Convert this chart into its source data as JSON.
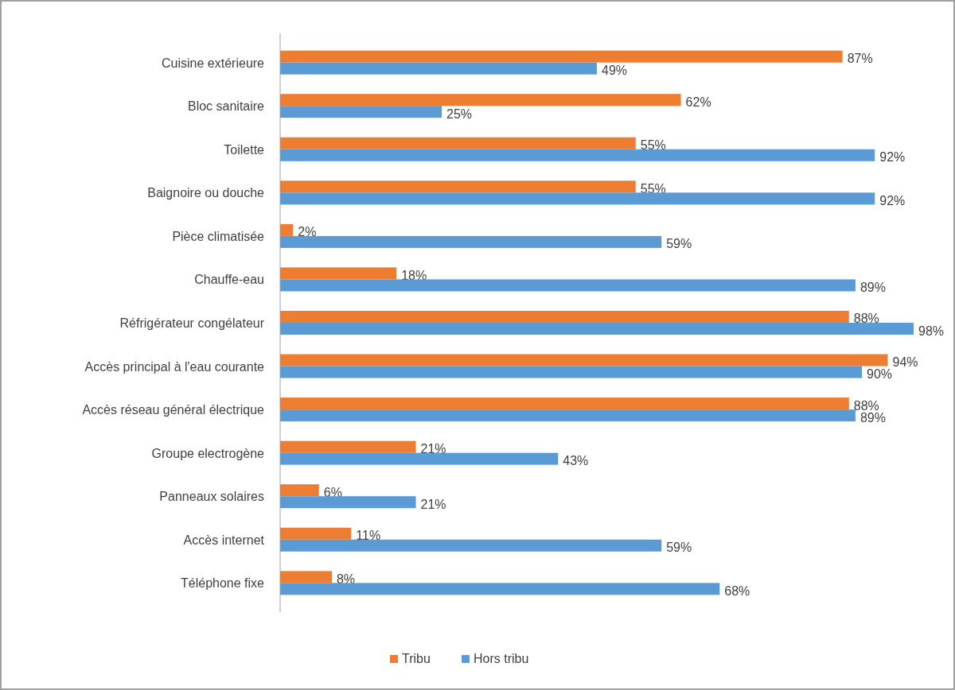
{
  "chart_data": {
    "type": "bar",
    "orientation": "horizontal",
    "categories": [
      "Cuisine extérieure",
      "Bloc sanitaire",
      "Toilette",
      "Baignoire ou douche",
      "Pièce climatisée",
      "Chauffe-eau",
      "Réfrigérateur congélateur",
      "Accès principal à l'eau courante",
      "Accès réseau général électrique",
      "Groupe electrogène",
      "Panneaux solaires",
      "Accès internet",
      "Téléphone fixe"
    ],
    "series": [
      {
        "name": "Tribu",
        "color": "#ed7d31",
        "values": [
          87,
          62,
          55,
          55,
          2,
          18,
          88,
          94,
          88,
          21,
          6,
          11,
          8
        ],
        "value_labels": [
          "87%",
          "62%",
          "55%",
          "55%",
          "2%",
          "18%",
          "88%",
          "94%",
          "88%",
          "21%",
          "6%",
          "11%",
          "8%"
        ]
      },
      {
        "name": "Hors tribu",
        "color": "#5b9bd5",
        "values": [
          49,
          25,
          92,
          92,
          59,
          89,
          98,
          90,
          89,
          43,
          21,
          59,
          68
        ],
        "value_labels": [
          "49%",
          "25%",
          "92%",
          "92%",
          "59%",
          "89%",
          "98%",
          "90%",
          "89%",
          "43%",
          "21%",
          "59%",
          "68%"
        ]
      }
    ],
    "legend": "bottom"
  }
}
